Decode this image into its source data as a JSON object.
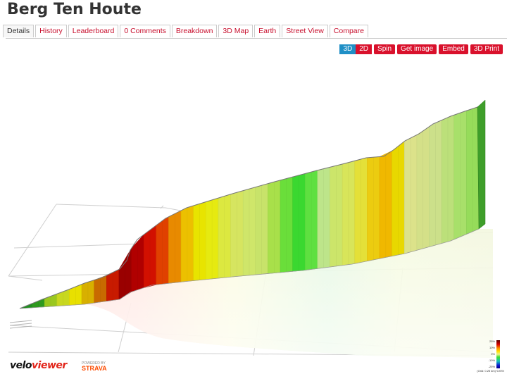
{
  "page_title": "Berg Ten Houte",
  "tabs": [
    {
      "label": "Details",
      "active": true
    },
    {
      "label": "History"
    },
    {
      "label": "Leaderboard"
    },
    {
      "label": "0 Comments"
    },
    {
      "label": "Breakdown"
    },
    {
      "label": "3D Map"
    },
    {
      "label": "Earth"
    },
    {
      "label": "Street View"
    },
    {
      "label": "Compare"
    }
  ],
  "toolbar": {
    "view_3d": "3D",
    "view_2d": "2D",
    "spin": "Spin",
    "get_image": "Get image",
    "embed": "Embed",
    "print_3d": "3D Print",
    "active_color": "#1f8fc6",
    "button_color": "#d9112c"
  },
  "branding": {
    "logo_part1": "velo",
    "logo_part2": "viewer",
    "powered_by": "POWERED BY",
    "strava": "STRAVA"
  },
  "legend": {
    "ticks": [
      "25%",
      "10%",
      "0%",
      "-10%",
      "-25%"
    ],
    "note": "(Grid: 0.25 km) ©25%"
  },
  "profile_colors": [
    "#1f8f1f",
    "#2e9a1f",
    "#9ac81f",
    "#c8d81f",
    "#e8e000",
    "#d8b000",
    "#c86a00",
    "#c81a00",
    "#9a0000",
    "#b00000",
    "#d21000",
    "#e04000",
    "#e88a00",
    "#ecc000",
    "#e8e400",
    "#e6ea10",
    "#dce840",
    "#d6e560",
    "#cfe66a",
    "#c8e36a",
    "#a8e04a",
    "#6ade3a",
    "#3ad830",
    "#5ee040",
    "#bde58a",
    "#cce56a",
    "#d8e55a",
    "#e4e038",
    "#eccc10",
    "#f0b800",
    "#e8d800",
    "#dce28a",
    "#d4e088",
    "#cce08a",
    "#bce07a",
    "#a8e06a",
    "#96dc5a"
  ]
}
